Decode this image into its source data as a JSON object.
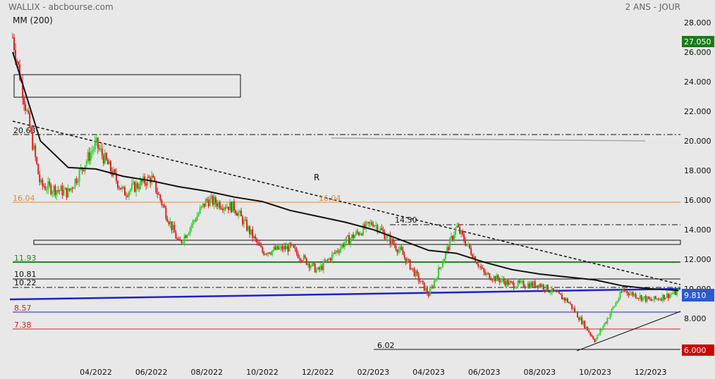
{
  "header": {
    "source": "WALLIX - abcbourse.com",
    "period": "2 ANS - JOUR",
    "indicator": "MM (200)"
  },
  "chart_data": {
    "type": "candlestick",
    "ylim": [
      5.5,
      29.0
    ],
    "y_ticks": [
      "28.000",
      "26.000",
      "24.000",
      "22.000",
      "20.000",
      "18.000",
      "16.000",
      "14.000",
      "12.000",
      "10.000",
      "8.000"
    ],
    "x_ticks": [
      "04/2022",
      "06/2022",
      "08/2022",
      "10/2022",
      "12/2022",
      "02/2023",
      "04/2023",
      "06/2023",
      "08/2023",
      "10/2023",
      "12/2023"
    ],
    "last_price_tag": "27.050",
    "current_price_tag": "9.810",
    "low_price_tag": "6.000",
    "annotations": {
      "r_label": "R",
      "level_20_63": "20.63",
      "level_16_04": "16.04",
      "level_14_50": "14.50",
      "level_11_93": "11.93",
      "level_10_81": "10.81",
      "level_10_22": "10.22",
      "level_8_57": "8.57",
      "level_7_38": "7.38",
      "level_6_02": "6.02"
    },
    "colors": {
      "up": "#2bd52b",
      "down": "#e02020",
      "ma": "#111111",
      "orange_line": "#e08a3a",
      "green_line": "#1a8a1a",
      "blue_line": "#2020cc",
      "red_line": "#d22222",
      "price_tag_green": "#1a7a1a",
      "price_tag_blue": "#2a5ad0",
      "price_tag_red": "#d00000"
    },
    "price_path": [
      {
        "month": "2022-01",
        "value": 27.0
      },
      {
        "month": "2022-02",
        "value": 17.0
      },
      {
        "month": "2022-03",
        "value": 16.5
      },
      {
        "month": "2022-04",
        "value": 19.8
      },
      {
        "month": "2022-05",
        "value": 16.5
      },
      {
        "month": "2022-06",
        "value": 17.5
      },
      {
        "month": "2022-07",
        "value": 13.0
      },
      {
        "month": "2022-08",
        "value": 16.0
      },
      {
        "month": "2022-09",
        "value": 15.5
      },
      {
        "month": "2022-10",
        "value": 12.5
      },
      {
        "month": "2022-11",
        "value": 12.8
      },
      {
        "month": "2022-12",
        "value": 11.2
      },
      {
        "month": "2023-01",
        "value": 13.2
      },
      {
        "month": "2023-02",
        "value": 14.5
      },
      {
        "month": "2023-03",
        "value": 12.5
      },
      {
        "month": "2023-04",
        "value": 9.6
      },
      {
        "month": "2023-05",
        "value": 14.2
      },
      {
        "month": "2023-06",
        "value": 11.0
      },
      {
        "month": "2023-07",
        "value": 10.3
      },
      {
        "month": "2023-08",
        "value": 10.3
      },
      {
        "month": "2023-09",
        "value": 9.2
      },
      {
        "month": "2023-10",
        "value": 6.5
      },
      {
        "month": "2023-11",
        "value": 9.9
      },
      {
        "month": "2023-12",
        "value": 9.2
      },
      {
        "month": "2024-01",
        "value": 9.8
      }
    ],
    "ma200_path": [
      {
        "month": "2022-01",
        "value": 26.0
      },
      {
        "month": "2022-02",
        "value": 20.0
      },
      {
        "month": "2022-03",
        "value": 18.2
      },
      {
        "month": "2022-04",
        "value": 18.1
      },
      {
        "month": "2022-05",
        "value": 17.6
      },
      {
        "month": "2022-06",
        "value": 17.3
      },
      {
        "month": "2022-07",
        "value": 16.9
      },
      {
        "month": "2022-08",
        "value": 16.6
      },
      {
        "month": "2022-09",
        "value": 16.2
      },
      {
        "month": "2022-10",
        "value": 15.9
      },
      {
        "month": "2022-11",
        "value": 15.3
      },
      {
        "month": "2022-12",
        "value": 14.9
      },
      {
        "month": "2023-01",
        "value": 14.5
      },
      {
        "month": "2023-02",
        "value": 14.0
      },
      {
        "month": "2023-03",
        "value": 13.3
      },
      {
        "month": "2023-04",
        "value": 12.6
      },
      {
        "month": "2023-05",
        "value": 12.4
      },
      {
        "month": "2023-06",
        "value": 11.8
      },
      {
        "month": "2023-07",
        "value": 11.3
      },
      {
        "month": "2023-08",
        "value": 11.0
      },
      {
        "month": "2023-09",
        "value": 10.8
      },
      {
        "month": "2023-10",
        "value": 10.6
      },
      {
        "month": "2023-11",
        "value": 10.2
      },
      {
        "month": "2023-12",
        "value": 10.0
      },
      {
        "month": "2024-01",
        "value": 9.9
      }
    ]
  }
}
